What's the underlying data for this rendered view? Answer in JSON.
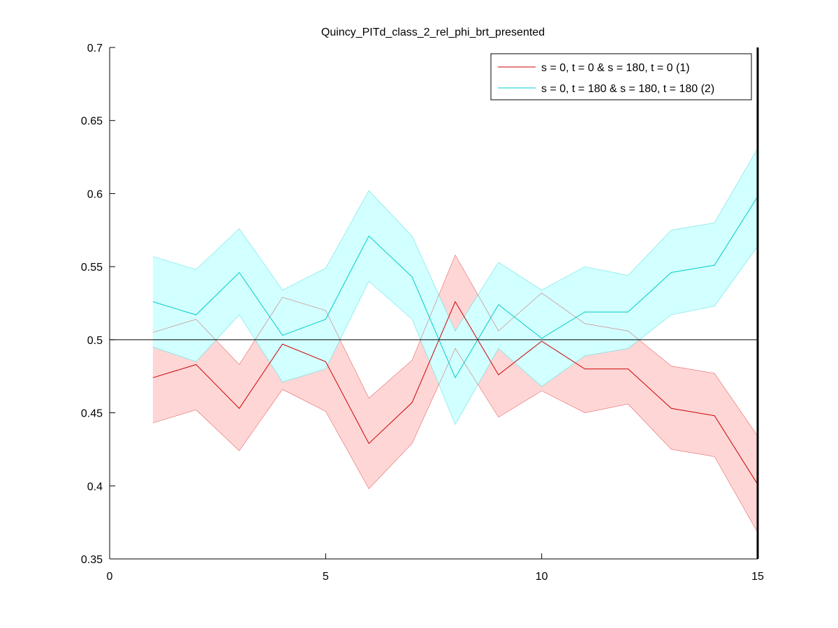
{
  "chart_data": {
    "type": "line",
    "title": "Quincy_PITd_class_2_rel_phi_brt_presented",
    "xlabel": "",
    "ylabel": "",
    "xlim": [
      0,
      15
    ],
    "ylim": [
      0.35,
      0.7
    ],
    "xticks": [
      0,
      5,
      10,
      15
    ],
    "xtick_labels": [
      "0",
      "5",
      "10",
      "15"
    ],
    "yticks": [
      0.35,
      0.4,
      0.45,
      0.5,
      0.55,
      0.6,
      0.65,
      0.7
    ],
    "ytick_labels": [
      "0.35",
      "0.4",
      "0.45",
      "0.5",
      "0.55",
      "0.6",
      "0.65",
      "0.7"
    ],
    "grid": false,
    "legend_position": "top-right",
    "reference_line": 0.5,
    "x": [
      1,
      2,
      3,
      4,
      5,
      6,
      7,
      8,
      9,
      10,
      11,
      12,
      13,
      14,
      15
    ],
    "series": [
      {
        "name": "s = 0, t = 0 & s = 180, t = 0 (1)",
        "line_color": "#cc0000",
        "fill_color": "#ffd6d6",
        "values": [
          0.474,
          0.483,
          0.453,
          0.497,
          0.485,
          0.429,
          0.457,
          0.526,
          0.476,
          0.499,
          0.48,
          0.48,
          0.453,
          0.448,
          0.401
        ],
        "upper": [
          0.505,
          0.514,
          0.483,
          0.529,
          0.52,
          0.46,
          0.486,
          0.558,
          0.506,
          0.532,
          0.511,
          0.506,
          0.482,
          0.477,
          0.434
        ],
        "lower": [
          0.443,
          0.452,
          0.424,
          0.466,
          0.451,
          0.398,
          0.429,
          0.494,
          0.447,
          0.465,
          0.45,
          0.456,
          0.425,
          0.42,
          0.368
        ]
      },
      {
        "name": "s = 0, t = 180 & s = 180, t = 180 (2)",
        "line_color": "#00cccc",
        "fill_color": "#d2ffff",
        "values": [
          0.526,
          0.517,
          0.546,
          0.503,
          0.514,
          0.571,
          0.543,
          0.474,
          0.524,
          0.501,
          0.519,
          0.519,
          0.546,
          0.551,
          0.598
        ],
        "upper": [
          0.557,
          0.548,
          0.576,
          0.534,
          0.549,
          0.602,
          0.571,
          0.506,
          0.553,
          0.534,
          0.55,
          0.544,
          0.575,
          0.58,
          0.631
        ],
        "lower": [
          0.495,
          0.485,
          0.517,
          0.471,
          0.48,
          0.54,
          0.514,
          0.442,
          0.494,
          0.468,
          0.489,
          0.494,
          0.517,
          0.523,
          0.564
        ]
      }
    ]
  }
}
